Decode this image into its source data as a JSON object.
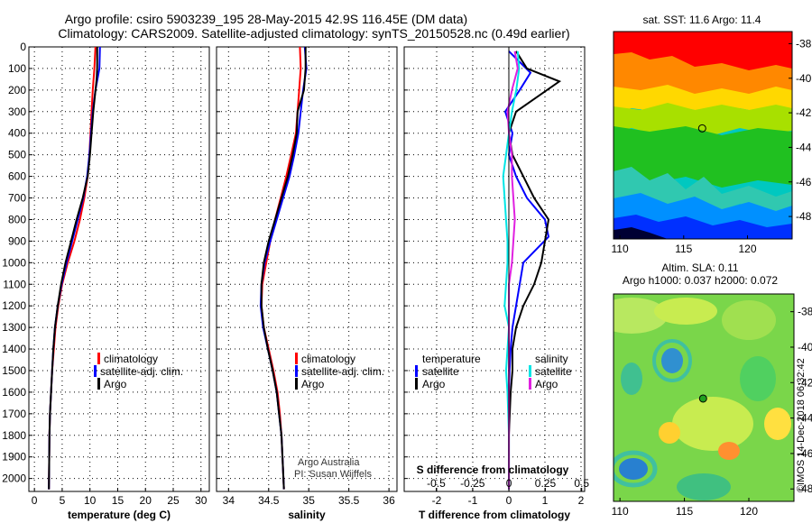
{
  "title": {
    "line1": "Argo profile: csiro 5903239_195 28-May-2015 42.9S 116.45E (DM data)",
    "line2": "Climatology: CARS2009. Satellite-adjusted climatology: synTS_20150528.nc (0.49d earlier)"
  },
  "colors": {
    "climatology": "#ff0000",
    "satellite": "#0000ff",
    "argo": "#000000",
    "satellite_salinity": "#00e5e5",
    "argo_salinity": "#e020e0"
  },
  "chart_data": [
    {
      "type": "line",
      "id": "temperature",
      "xlabel": "temperature (deg C)",
      "ylabel": "",
      "xlim": [
        -1,
        31.5
      ],
      "ylim": [
        2060,
        0
      ],
      "xticks": [
        "0",
        "5",
        "10",
        "15",
        "20",
        "25",
        "30"
      ],
      "yticks": [
        "0",
        "100",
        "200",
        "300",
        "400",
        "500",
        "600",
        "700",
        "800",
        "900",
        "1000",
        "1100",
        "1200",
        "1300",
        "1400",
        "1500",
        "1600",
        "1700",
        "1800",
        "1900",
        "2000"
      ],
      "legend": [
        "climatology",
        "satellite-adj. clim.",
        "Argo"
      ],
      "series": [
        {
          "name": "climatology",
          "color": "#ff0000",
          "x": [
            11.0,
            10.8,
            10.5,
            10.3,
            10.1,
            9.9,
            9.6,
            9.0,
            8.2,
            7.2,
            6.0,
            5.0,
            4.3,
            3.8,
            3.5,
            3.2,
            3.0,
            2.8,
            2.7,
            2.6
          ],
          "y": [
            0,
            100,
            200,
            300,
            400,
            500,
            600,
            700,
            800,
            900,
            1000,
            1100,
            1200,
            1300,
            1400,
            1500,
            1600,
            1700,
            1800,
            2050
          ]
        },
        {
          "name": "satellite-adj. clim.",
          "color": "#0000ff",
          "x": [
            11.8,
            11.7,
            11.0,
            10.5,
            10.2,
            9.9,
            9.5,
            8.8,
            7.8,
            6.8,
            5.8,
            4.9,
            4.2,
            3.7,
            3.4,
            3.2,
            3.0,
            2.8,
            2.7,
            2.6
          ],
          "y": [
            0,
            100,
            200,
            300,
            400,
            500,
            600,
            700,
            800,
            900,
            1000,
            1100,
            1200,
            1300,
            1400,
            1500,
            1600,
            1700,
            1800,
            2050
          ]
        },
        {
          "name": "Argo",
          "color": "#000000",
          "x": [
            11.3,
            11.3,
            11.2,
            10.6,
            10.3,
            10.0,
            9.6,
            8.7,
            7.6,
            6.6,
            5.6,
            4.8,
            4.2,
            3.7,
            3.4,
            3.2,
            3.0,
            2.8,
            2.7,
            2.6
          ],
          "y": [
            0,
            100,
            150,
            300,
            400,
            500,
            600,
            700,
            800,
            900,
            1000,
            1100,
            1200,
            1300,
            1400,
            1500,
            1600,
            1700,
            1800,
            2050
          ]
        }
      ]
    },
    {
      "type": "line",
      "id": "salinity",
      "xlabel": "salinity",
      "ylabel": "",
      "xlim": [
        33.85,
        36.1
      ],
      "ylim": [
        2060,
        0
      ],
      "xticks": [
        "34",
        "34.5",
        "35",
        "35.5",
        "36"
      ],
      "legend": [
        "climatology",
        "satellite-adj. clim.",
        "Argo"
      ],
      "annotations": [
        "Argo Australia",
        "PI: Susan Wijffels"
      ],
      "series": [
        {
          "name": "climatology",
          "color": "#ff0000",
          "x": [
            34.89,
            34.9,
            34.88,
            34.86,
            34.84,
            34.78,
            34.72,
            34.65,
            34.58,
            34.52,
            34.47,
            34.42,
            34.41,
            34.44,
            34.5,
            34.56,
            34.61,
            34.64,
            34.66,
            34.69
          ],
          "y": [
            0,
            100,
            200,
            300,
            400,
            500,
            600,
            700,
            800,
            900,
            1000,
            1100,
            1200,
            1300,
            1400,
            1500,
            1600,
            1700,
            1800,
            2050
          ]
        },
        {
          "name": "satellite-adj. clim.",
          "color": "#0000ff",
          "x": [
            34.95,
            34.97,
            34.93,
            34.9,
            34.87,
            34.82,
            34.76,
            34.68,
            34.6,
            34.52,
            34.45,
            34.41,
            34.4,
            34.43,
            34.49,
            34.55,
            34.6,
            34.63,
            34.66,
            34.69
          ],
          "y": [
            0,
            100,
            200,
            300,
            400,
            500,
            600,
            700,
            800,
            900,
            1000,
            1100,
            1200,
            1300,
            1400,
            1500,
            1600,
            1700,
            1800,
            2050
          ]
        },
        {
          "name": "Argo",
          "color": "#000000",
          "x": [
            34.96,
            34.96,
            34.94,
            34.86,
            34.85,
            34.8,
            34.74,
            34.66,
            34.58,
            34.5,
            34.44,
            34.41,
            34.41,
            34.44,
            34.49,
            34.55,
            34.6,
            34.63,
            34.66,
            34.69
          ],
          "y": [
            0,
            100,
            200,
            300,
            400,
            500,
            600,
            700,
            800,
            900,
            1000,
            1100,
            1200,
            1300,
            1400,
            1500,
            1600,
            1700,
            1800,
            2050
          ]
        }
      ]
    },
    {
      "type": "line",
      "id": "difference",
      "xlabel": "T difference from climatology",
      "xlabel2": "S difference from climatology",
      "xlim": [
        -2.9,
        2.1
      ],
      "xlim_salinity": [
        -0.72,
        0.52
      ],
      "ylim": [
        2060,
        0
      ],
      "xticks": [
        "-2",
        "-1",
        "0",
        "1",
        "2"
      ],
      "xticks2": [
        "-0.5",
        "-0.25",
        "0",
        "0.25",
        "0.5"
      ],
      "legend_temperature_title": "temperature",
      "legend_salinity_title": "salinity",
      "legend_temperature": [
        "satellite",
        "Argo"
      ],
      "legend_salinity": [
        "satellite",
        "Argo"
      ],
      "series": [
        {
          "name": "T satellite",
          "color": "#0000ff",
          "x": [
            0.0,
            0.6,
            0.3,
            -0.1,
            0.1,
            0.0,
            0.2,
            0.5,
            1.0,
            1.1,
            0.4,
            0.3,
            0.2,
            0.1,
            0.05,
            0.02,
            0.0,
            0.0,
            0.0
          ],
          "y": [
            20,
            120,
            200,
            300,
            400,
            500,
            600,
            700,
            800,
            880,
            1000,
            1100,
            1200,
            1300,
            1400,
            1500,
            1600,
            1800,
            2050
          ]
        },
        {
          "name": "T Argo",
          "color": "#000000",
          "x": [
            0.2,
            0.5,
            1.4,
            0.2,
            0.0,
            0.1,
            0.4,
            0.7,
            1.1,
            1.0,
            0.9,
            0.7,
            0.4,
            0.2,
            0.1,
            0.1,
            0.05,
            0.0,
            0.0
          ],
          "y": [
            20,
            100,
            160,
            300,
            400,
            500,
            600,
            700,
            800,
            900,
            1000,
            1100,
            1200,
            1300,
            1400,
            1500,
            1600,
            1800,
            2050
          ]
        },
        {
          "name": "S satellite",
          "color": "#00e5e5",
          "x": [
            0.06,
            0.07,
            0.05,
            0.02,
            0.0,
            -0.02,
            -0.04,
            -0.03,
            -0.02,
            -0.01,
            -0.01,
            -0.02,
            -0.03,
            0.0,
            -0.01,
            -0.02,
            -0.01,
            0.0,
            0.0
          ],
          "y": [
            20,
            100,
            200,
            300,
            400,
            500,
            600,
            700,
            800,
            900,
            1000,
            1100,
            1200,
            1300,
            1400,
            1500,
            1600,
            1800,
            2050
          ]
        },
        {
          "name": "S Argo",
          "color": "#e020e0",
          "x": [
            0.04,
            0.06,
            0.02,
            -0.01,
            0.0,
            0.02,
            0.02,
            0.03,
            0.04,
            0.03,
            0.02,
            0.0,
            0.0,
            0.0,
            0.0,
            0.0,
            0.0,
            0.0,
            0.0
          ],
          "y": [
            20,
            100,
            200,
            300,
            400,
            500,
            600,
            700,
            800,
            900,
            1000,
            1100,
            1200,
            1300,
            1400,
            1500,
            1600,
            1800,
            2050
          ]
        }
      ]
    },
    {
      "type": "heatmap",
      "id": "sst_map",
      "title": "sat. SST: 11.6 Argo: 11.4",
      "xticks": [
        "110",
        "115",
        "120"
      ],
      "yticks": [
        "-38",
        "-40",
        "-42",
        "-44",
        "-46",
        "-48"
      ],
      "xlim": [
        109.5,
        123.5
      ],
      "ylim": [
        -49.3,
        -37.3
      ],
      "marker": {
        "lon": 116.45,
        "lat": -42.9
      }
    },
    {
      "type": "heatmap",
      "id": "sla_map",
      "title": "Altim. SLA: 0.11",
      "subtitle": "Argo h1000: 0.037 h2000: 0.072",
      "xticks": [
        "110",
        "115",
        "120"
      ],
      "yticks": [
        "-38",
        "-40",
        "-42",
        "-44",
        "-46",
        "-48"
      ],
      "xlim": [
        109.5,
        123.5
      ],
      "ylim": [
        -48.7,
        -37.0
      ],
      "marker": {
        "lon": 116.45,
        "lat": -42.9
      }
    }
  ],
  "credit": "©IMOS 14-Dec-2018 06:32:42"
}
